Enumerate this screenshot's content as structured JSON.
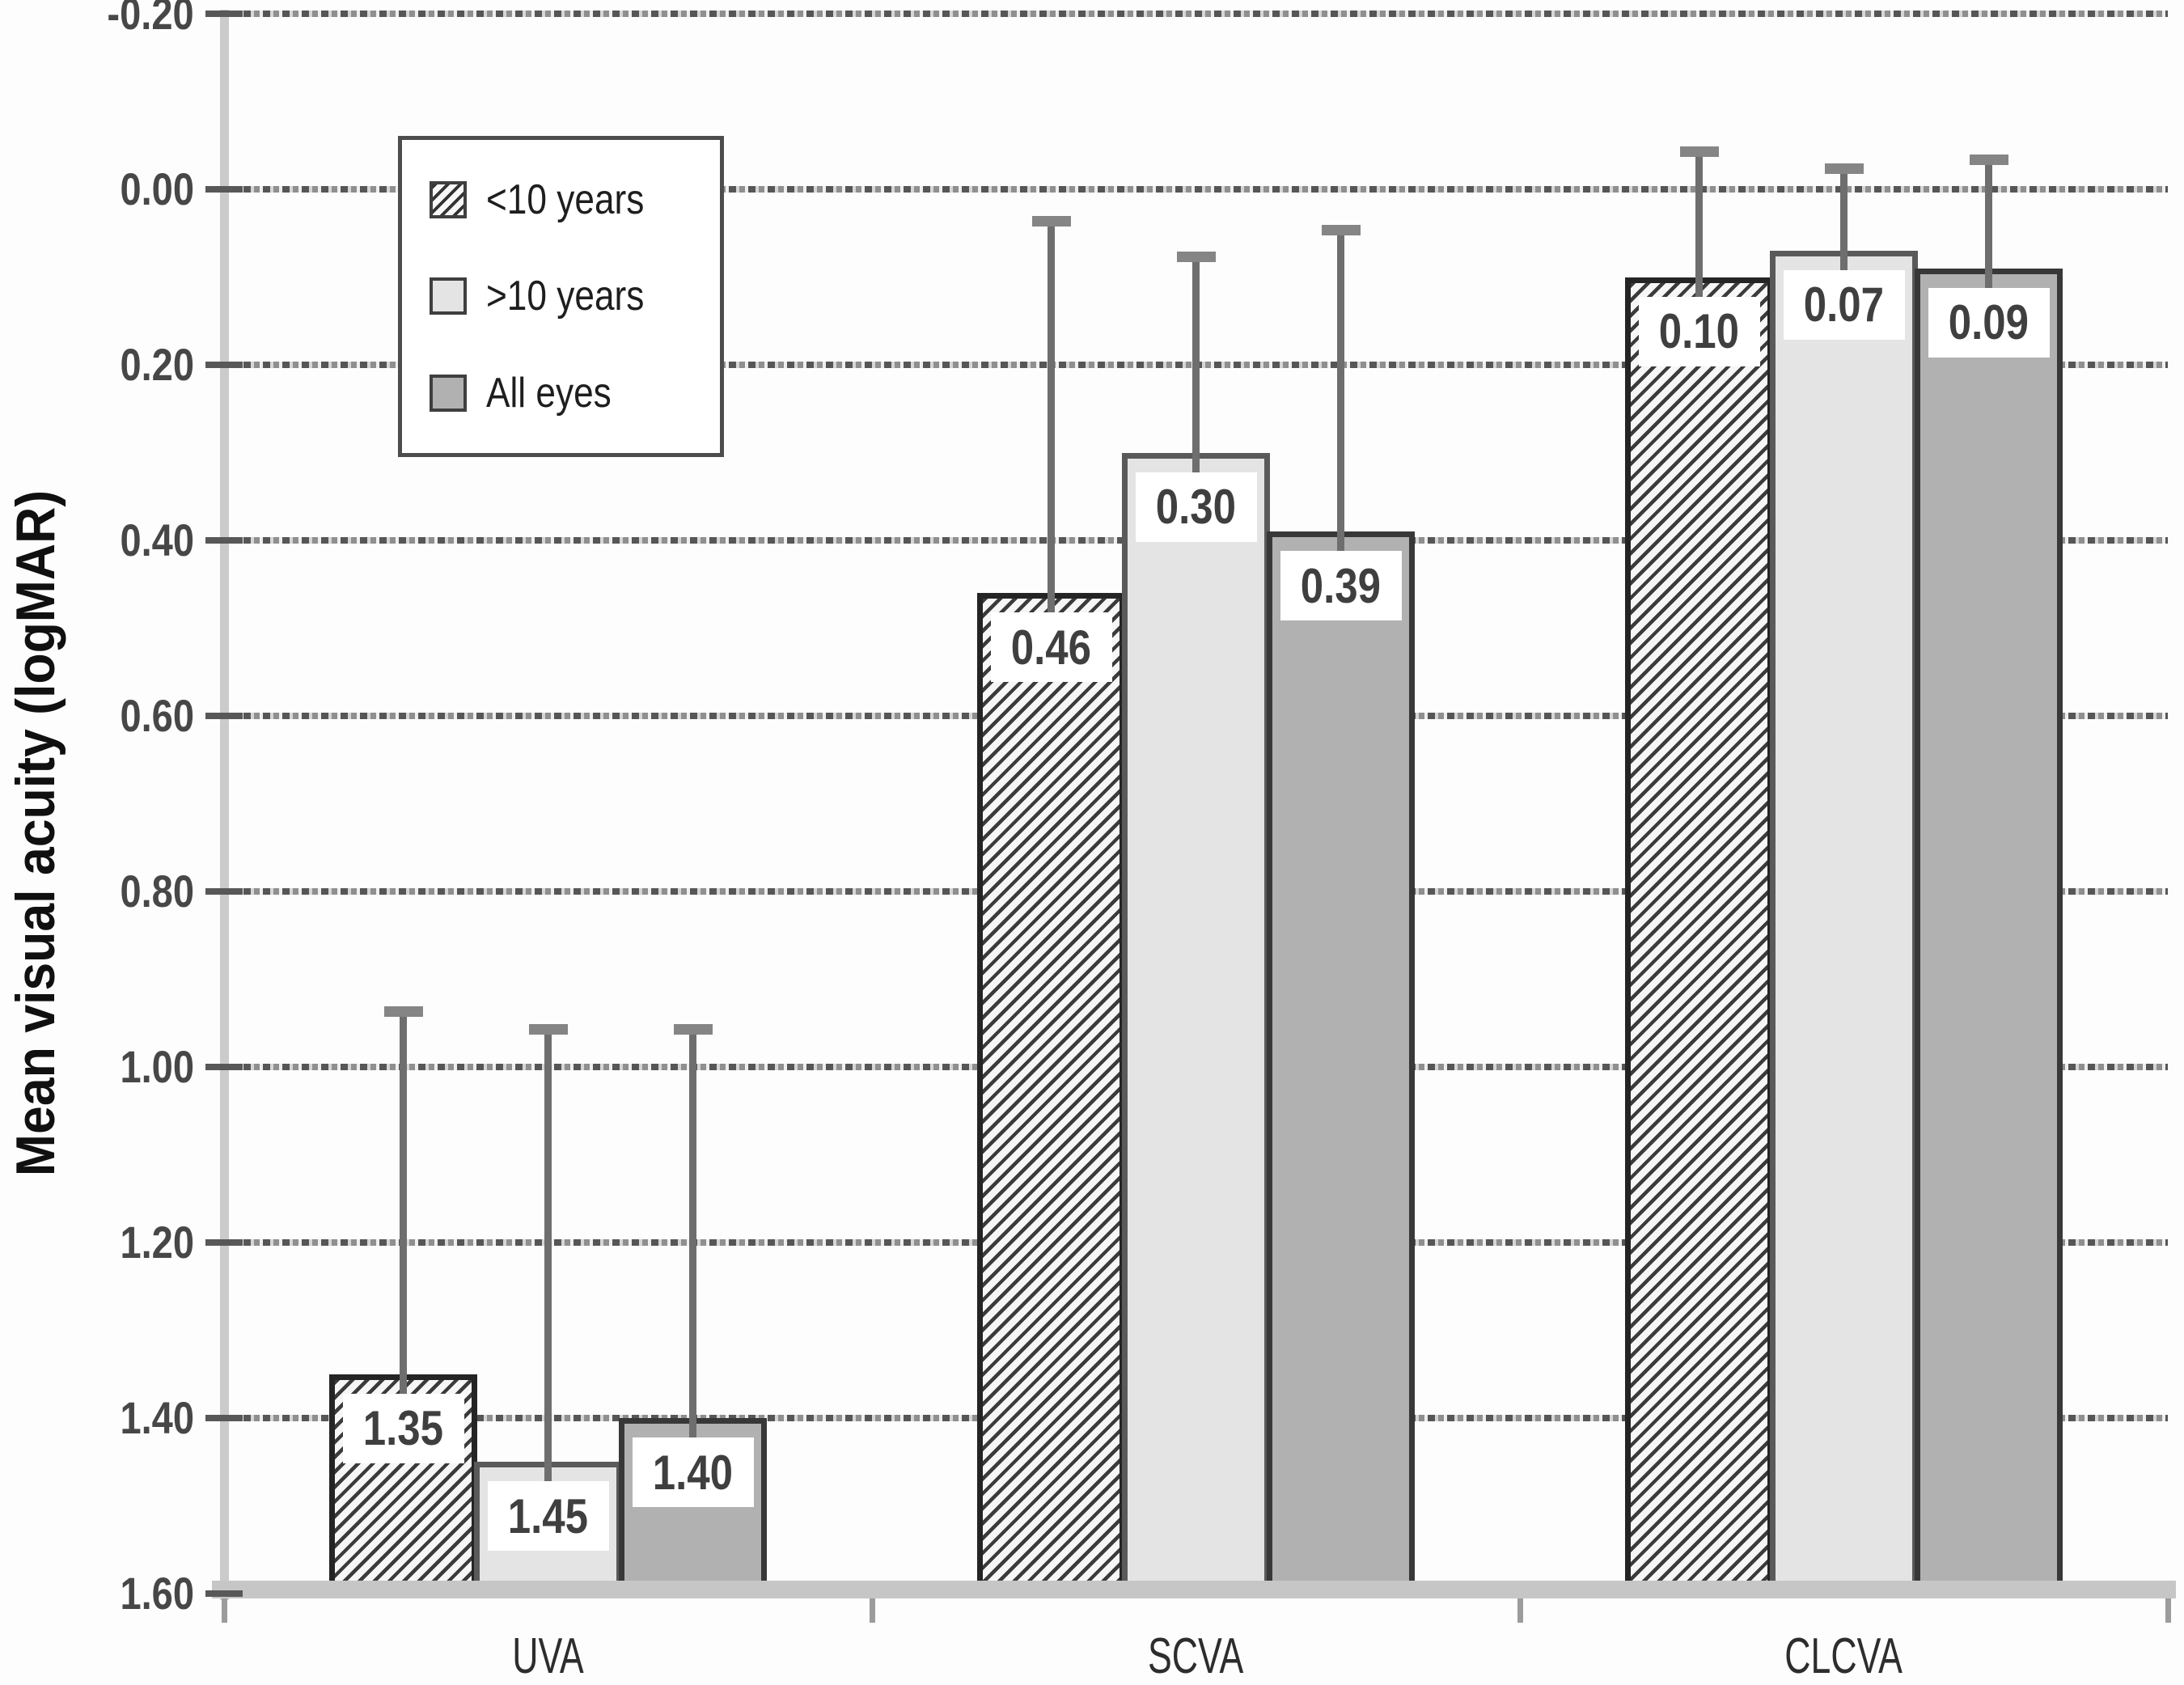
{
  "chart_data": {
    "type": "bar",
    "title": "",
    "xlabel": "",
    "ylabel": "Mean visual acuity (logMAR)",
    "categories": [
      "UVA",
      "SCVA",
      "CLCVA"
    ],
    "series": [
      {
        "name": "<10 years",
        "style": "hatched",
        "values": [
          1.35,
          0.46,
          0.1
        ],
        "data_labels": [
          "1.35",
          "0.46",
          "0.10"
        ],
        "error_bar_tops": [
          0.94,
          0.04,
          -0.04
        ]
      },
      {
        "name": ">10 years",
        "style": "light",
        "fill": "#e4e4e4",
        "values": [
          1.45,
          0.3,
          0.07
        ],
        "data_labels": [
          "1.45",
          "0.30",
          "0.07"
        ],
        "error_bar_tops": [
          0.96,
          0.08,
          -0.02
        ]
      },
      {
        "name": "All eyes",
        "style": "dark",
        "fill": "#b1b1b1",
        "values": [
          1.4,
          0.39,
          0.09
        ],
        "data_labels": [
          "1.40",
          "0.39",
          "0.09"
        ],
        "error_bar_tops": [
          0.96,
          0.05,
          -0.03
        ]
      }
    ],
    "y_axis": {
      "min": -0.2,
      "max": 1.6,
      "step": 0.2,
      "inverted": true,
      "tick_labels": [
        "-0.20",
        "0.00",
        "0.20",
        "0.40",
        "0.60",
        "0.80",
        "1.00",
        "1.20",
        "1.40",
        "1.60"
      ],
      "grid": "dotted"
    },
    "legend_position": "inside-top-left",
    "error_bars": "upper-whisker-with-cap",
    "colors": {
      "hatch_line": "#3b3b3b",
      "light_fill": "#e4e4e4",
      "dark_fill": "#b1b1b1",
      "error_bar": "#6e6e6e",
      "grid_dash": "#565656",
      "axis_band": "#cbcbcb",
      "label_text": "#3f3f3f",
      "background": "#fdfdfd"
    }
  }
}
